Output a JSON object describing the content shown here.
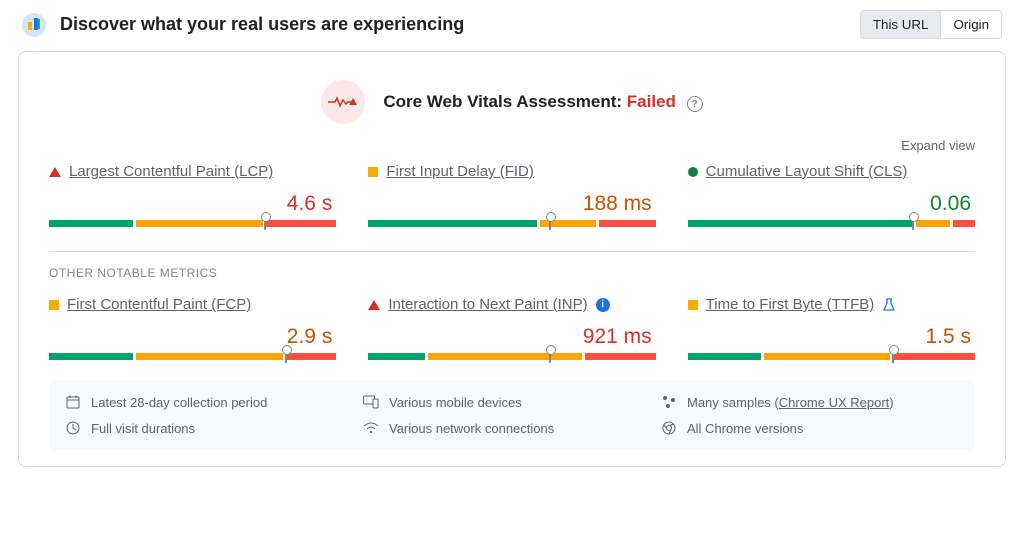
{
  "header": {
    "title": "Discover what your real users are experiencing",
    "toggle": {
      "this_url": "This URL",
      "origin": "Origin",
      "active": "this_url"
    }
  },
  "assessment": {
    "label": "Core Web Vitals Assessment: ",
    "status_text": "Failed",
    "status": "failed",
    "pulse_color": "#d93025"
  },
  "expand_label": "Expand view",
  "section_label": "OTHER NOTABLE METRICS",
  "colors": {
    "green": "#00a36c",
    "orange": "#ffa400",
    "red": "#ff4e42",
    "value_red": "#d93025",
    "value_orange": "#c95100",
    "value_green": "#188038"
  },
  "metrics_core": [
    {
      "marker": "triangle",
      "name": "Largest Contentful Paint (LCP)",
      "value": "4.6 s",
      "value_color": "#d93025",
      "segments": [
        30,
        45,
        25
      ],
      "pointer_pct": 75
    },
    {
      "marker": "square",
      "name": "First Input Delay (FID)",
      "value": "188 ms",
      "value_color": "#c95100",
      "segments": [
        60,
        20,
        20
      ],
      "pointer_pct": 63
    },
    {
      "marker": "circle",
      "name": "Cumulative Layout Shift (CLS)",
      "value": "0.06",
      "value_color": "#188038",
      "segments": [
        80,
        12,
        8
      ],
      "pointer_pct": 78
    }
  ],
  "metrics_other": [
    {
      "marker": "square",
      "name": "First Contentful Paint (FCP)",
      "value": "2.9 s",
      "value_color": "#c95100",
      "segments": [
        30,
        52,
        18
      ],
      "pointer_pct": 82,
      "extra": null
    },
    {
      "marker": "triangle",
      "name": "Interaction to Next Paint (INP)",
      "value": "921 ms",
      "value_color": "#d93025",
      "segments": [
        20,
        55,
        25
      ],
      "pointer_pct": 63,
      "extra": "info"
    },
    {
      "marker": "square",
      "name": "Time to First Byte (TTFB)",
      "value": "1.5 s",
      "value_color": "#c95100",
      "segments": [
        26,
        45,
        29
      ],
      "pointer_pct": 71,
      "extra": "flask"
    }
  ],
  "footer": {
    "period": "Latest 28-day collection period",
    "devices": "Various mobile devices",
    "samples_prefix": "Many samples (",
    "samples_link": "Chrome UX Report",
    "samples_suffix": ")",
    "durations": "Full visit durations",
    "network": "Various network connections",
    "versions": "All Chrome versions"
  }
}
